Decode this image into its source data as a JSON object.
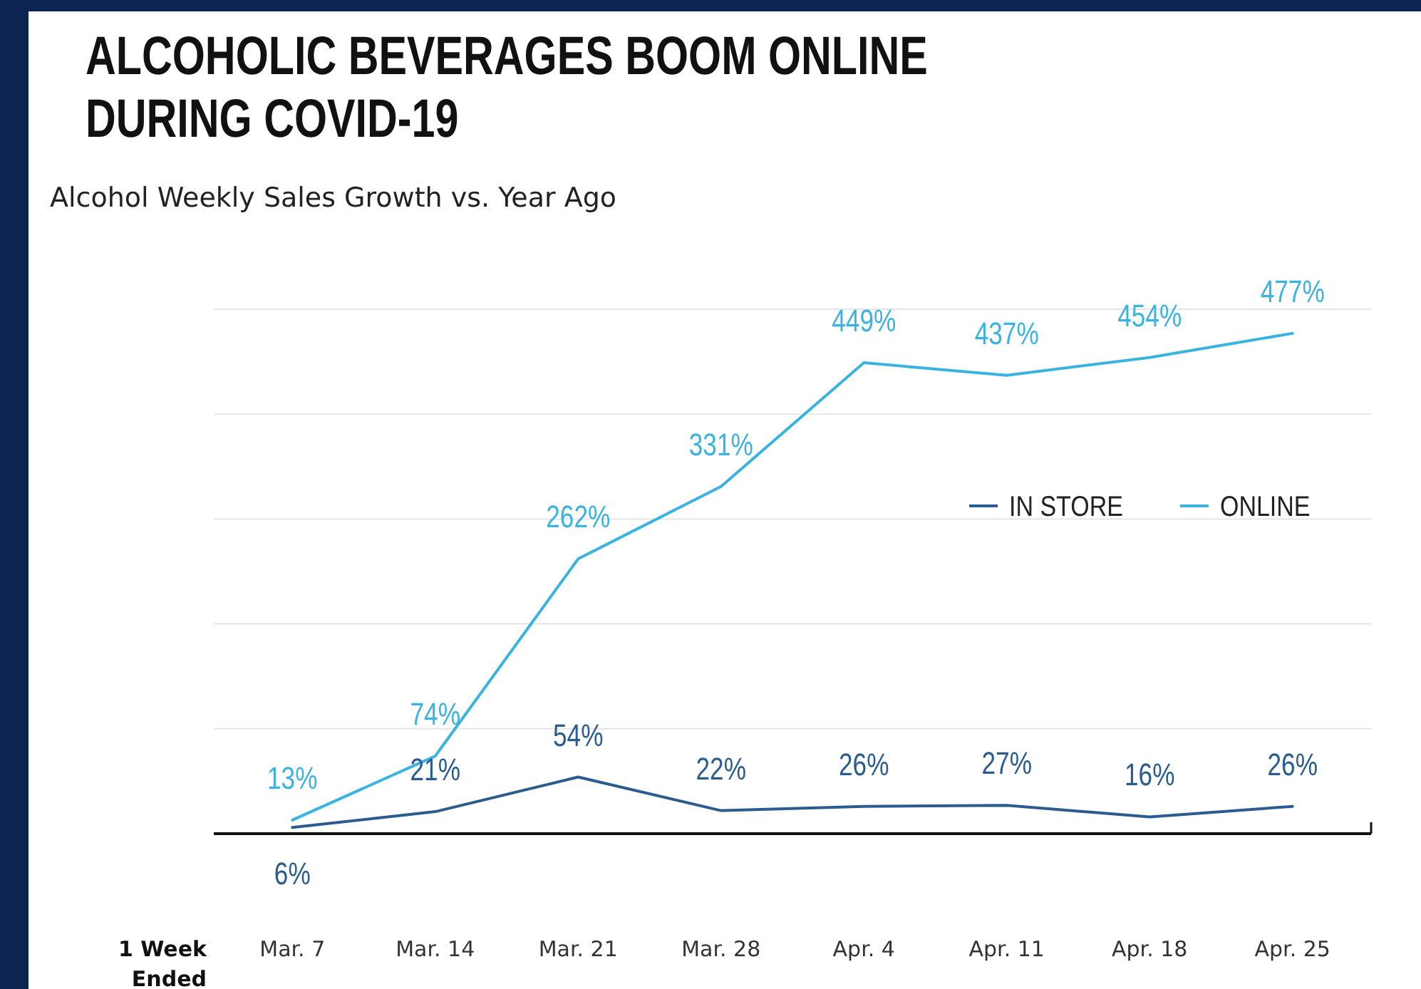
{
  "chart_data": {
    "type": "line",
    "title": "ALCOHOLIC BEVERAGES BOOM ONLINE DURING COVID-19",
    "subtitle": "Alcohol Weekly Sales Growth vs. Year Ago",
    "xlabel": "1 Week Ended",
    "categories": [
      "Mar. 7",
      "Mar. 14",
      "Mar. 21",
      "Mar. 28",
      "Apr. 4",
      "Apr. 11",
      "Apr. 18",
      "Apr. 25"
    ],
    "series": [
      {
        "name": "IN STORE",
        "color": "#2b5c8f",
        "values": [
          6,
          21,
          54,
          22,
          26,
          27,
          16,
          26
        ],
        "value_labels": [
          "6%",
          "21%",
          "54%",
          "22%",
          "26%",
          "27%",
          "16%",
          "26%"
        ]
      },
      {
        "name": "ONLINE",
        "color": "#3bb3e0",
        "values": [
          13,
          74,
          262,
          331,
          449,
          437,
          454,
          477
        ],
        "value_labels": [
          "13%",
          "74%",
          "262%",
          "331%",
          "449%",
          "437%",
          "454%",
          "477%"
        ]
      }
    ],
    "ylim": [
      0,
      500
    ],
    "yticks": [
      {
        "value": 0,
        "label": null
      },
      {
        "value": 100,
        "label": null
      },
      {
        "value": 200,
        "label": null
      },
      {
        "value": 300,
        "label": null
      },
      {
        "value": 400,
        "label": null
      },
      {
        "value": 500,
        "label": null
      }
    ],
    "tick_labels": "x",
    "grid": "y",
    "legend": "right",
    "marker": "none",
    "line_style": "solid"
  }
}
